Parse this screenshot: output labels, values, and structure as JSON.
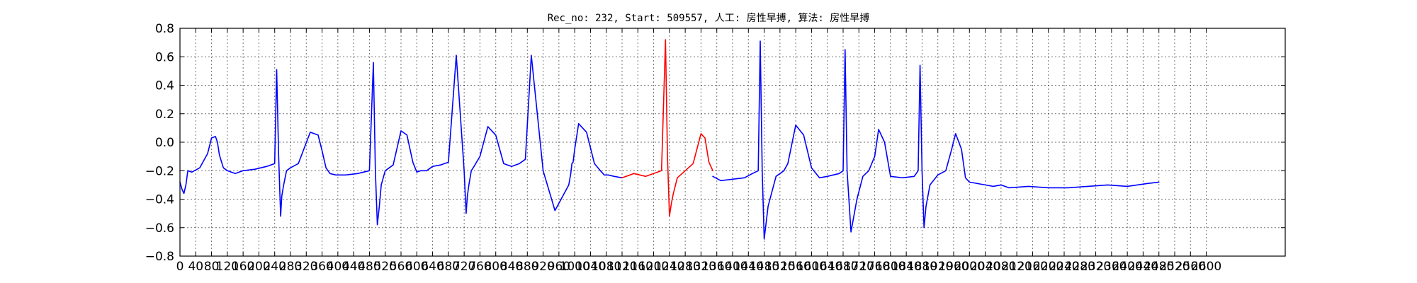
{
  "chart_data": {
    "type": "line",
    "title": "Rec_no: 232, Start: 509557, 人工: 房性早搏, 算法: 房性早搏",
    "xlabel": "",
    "ylabel": "",
    "xlim": [
      0,
      2800
    ],
    "ylim": [
      -0.8,
      0.8
    ],
    "grid": true,
    "y_ticks": [
      "0.8",
      "0.6",
      "0.4",
      "0.2",
      "0.0",
      "−0.2",
      "−0.4",
      "−0.6",
      "−0.8"
    ],
    "y_tick_values": [
      0.8,
      0.6,
      0.4,
      0.2,
      0.0,
      -0.2,
      -0.4,
      -0.6,
      -0.8
    ],
    "x_tick_values": [
      0,
      40,
      80,
      120,
      160,
      200,
      240,
      280,
      320,
      360,
      400,
      440,
      480,
      520,
      560,
      600,
      640,
      680,
      720,
      760,
      800,
      840,
      880,
      920,
      960,
      1000,
      1040,
      1080,
      1120,
      1160,
      1200,
      1240,
      1280,
      1320,
      1360,
      1400,
      1440,
      1480,
      1520,
      1560,
      1600,
      1640,
      1680,
      1720,
      1760,
      1800,
      1840,
      1880,
      1920,
      1960,
      2000,
      2040,
      2080,
      2120,
      2160,
      2200,
      2240,
      2280,
      2320,
      2360,
      2400,
      2440,
      2480,
      2520,
      2560,
      2600
    ],
    "x_ticks": [
      "0",
      "40",
      "80",
      "120",
      "160",
      "200",
      "240",
      "280",
      "320",
      "360",
      "400",
      "440",
      "480",
      "520",
      "560",
      "600",
      "640",
      "680",
      "720",
      "760",
      "800",
      "840",
      "880",
      "920",
      "960",
      "1000",
      "1040",
      "1080",
      "1120",
      "1160",
      "1200",
      "1240",
      "1280",
      "1320",
      "1360",
      "1400",
      "1440",
      "1480",
      "1520",
      "1560",
      "1600",
      "1640",
      "1680",
      "1720",
      "1760",
      "1800",
      "1840",
      "1880",
      "1920",
      "1960",
      "2000",
      "2040",
      "2080",
      "2120",
      "2160",
      "2200",
      "2240",
      "2280",
      "2320",
      "2360",
      "2400",
      "2440",
      "2480",
      "2520",
      "2560",
      "2600"
    ],
    "series": [
      {
        "color": "#0000ff",
        "x": [
          0,
          5,
          10,
          15,
          20,
          30,
          50,
          70,
          80,
          90,
          95,
          100,
          110,
          120,
          140,
          160,
          190,
          220,
          240,
          245,
          250,
          255,
          258,
          262,
          270,
          280,
          300,
          330,
          350,
          360,
          370,
          380,
          395,
          420,
          450,
          480,
          490,
          495,
          500,
          505,
          510,
          520,
          540,
          560,
          575,
          590,
          600,
          610,
          625,
          640,
          660,
          680,
          700,
          720,
          725,
          728,
          732,
          738,
          745,
          760,
          780,
          800,
          820,
          840,
          850,
          860,
          875,
          890,
          920,
          950,
          985,
          990,
          993,
          996,
          1000,
          1010,
          1030,
          1050,
          1065,
          1075,
          1085,
          1100,
          1120
        ],
        "y": [
          -0.28,
          -0.33,
          -0.36,
          -0.3,
          -0.2,
          -0.21,
          -0.18,
          -0.08,
          0.03,
          0.04,
          0.0,
          -0.09,
          -0.18,
          -0.2,
          -0.22,
          -0.2,
          -0.19,
          -0.17,
          -0.15,
          0.51,
          -0.1,
          -0.52,
          -0.38,
          -0.31,
          -0.2,
          -0.18,
          -0.15,
          0.07,
          0.05,
          -0.06,
          -0.18,
          -0.22,
          -0.23,
          -0.23,
          -0.22,
          -0.2,
          0.56,
          -0.2,
          -0.58,
          -0.45,
          -0.3,
          -0.2,
          -0.16,
          0.08,
          0.05,
          -0.14,
          -0.21,
          -0.2,
          -0.2,
          -0.17,
          -0.16,
          -0.14,
          0.61,
          -0.2,
          -0.5,
          -0.38,
          -0.3,
          -0.2,
          -0.17,
          -0.1,
          0.11,
          0.05,
          -0.15,
          -0.17,
          -0.16,
          -0.15,
          -0.12,
          0.61,
          -0.2,
          -0.48,
          -0.3,
          -0.22,
          -0.15,
          -0.14,
          -0.05,
          0.13,
          0.07,
          -0.15,
          -0.2,
          -0.23,
          -0.23,
          -0.24,
          -0.25
        ]
      },
      {
        "color": "#ff0000",
        "x": [
          1120,
          1150,
          1180,
          1220,
          1230,
          1235,
          1240,
          1245,
          1250,
          1260,
          1280,
          1300,
          1320,
          1330,
          1340,
          1350
        ],
        "y": [
          -0.25,
          -0.22,
          -0.24,
          -0.2,
          0.72,
          -0.1,
          -0.52,
          -0.43,
          -0.36,
          -0.25,
          -0.2,
          -0.15,
          0.06,
          0.03,
          -0.14,
          -0.2
        ]
      },
      {
        "color": "#0000ff",
        "x": [
          1350,
          1370,
          1400,
          1430,
          1450,
          1465,
          1470,
          1475,
          1480,
          1490,
          1510,
          1530,
          1540,
          1560,
          1580,
          1600,
          1620,
          1640,
          1670,
          1680,
          1685,
          1690,
          1700,
          1715,
          1730,
          1745,
          1760,
          1770,
          1785,
          1800,
          1830,
          1860,
          1870,
          1875,
          1880,
          1885,
          1890,
          1900,
          1920,
          1940,
          1955,
          1965,
          1980,
          1990,
          2000,
          2040,
          2060,
          2080,
          2100,
          2150,
          2200,
          2250,
          2300,
          2350,
          2400,
          2450,
          2480
        ],
        "y": [
          -0.24,
          -0.27,
          -0.26,
          -0.25,
          -0.22,
          -0.2,
          0.71,
          -0.2,
          -0.68,
          -0.45,
          -0.24,
          -0.2,
          -0.15,
          0.12,
          0.05,
          -0.18,
          -0.25,
          -0.24,
          -0.22,
          -0.2,
          0.65,
          -0.2,
          -0.63,
          -0.4,
          -0.24,
          -0.2,
          -0.1,
          0.09,
          0.0,
          -0.24,
          -0.25,
          -0.24,
          -0.2,
          0.54,
          -0.2,
          -0.6,
          -0.45,
          -0.3,
          -0.23,
          -0.2,
          -0.05,
          0.06,
          -0.05,
          -0.25,
          -0.28,
          -0.3,
          -0.31,
          -0.3,
          -0.32,
          -0.31,
          -0.32,
          -0.32,
          -0.31,
          -0.3,
          -0.31,
          -0.29,
          -0.28
        ]
      }
    ]
  }
}
